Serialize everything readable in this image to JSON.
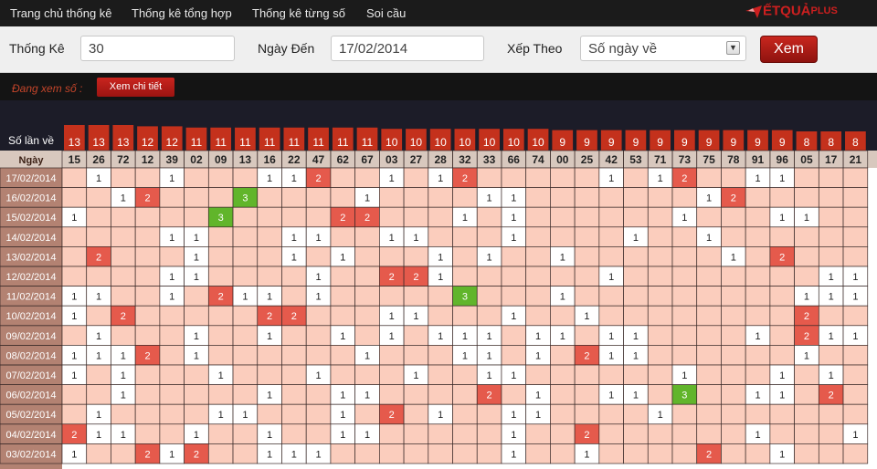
{
  "nav": {
    "items": [
      "Trang chủ thống kê",
      "Thống kê tổng hợp",
      "Thống kê từng số",
      "Soi cầu"
    ],
    "logo": {
      "part1": "ẾTQUẢ",
      "part2": "PLUS"
    }
  },
  "controls": {
    "stats_label": "Thống Kê",
    "stats_value": "30",
    "date_label": "Ngày Đến",
    "date_value": "17/02/2014",
    "sort_label": "Xếp Theo",
    "sort_value": "Số ngày về",
    "view_button": "Xem"
  },
  "viewing": {
    "label": "Đang xem số :",
    "detail_button": "Xem chi tiết"
  },
  "grid": {
    "count_label": "Số lần về",
    "date_header": "Ngày",
    "colors": {
      "header_dark": "#1c1c28",
      "bar_red": "#c4311c",
      "number_row_bg": "#d8c8be",
      "date_col_bg": "#b38272",
      "cell_pink": "#fbcdbd",
      "hit_white": "#ffffff",
      "hit_red": "#e55a4c",
      "hit_green": "#61b52b",
      "grid_line": "#3a2a28"
    },
    "columns": [
      {
        "number": "15",
        "count": 13
      },
      {
        "number": "26",
        "count": 13
      },
      {
        "number": "72",
        "count": 13
      },
      {
        "number": "12",
        "count": 12
      },
      {
        "number": "39",
        "count": 12
      },
      {
        "number": "02",
        "count": 11
      },
      {
        "number": "09",
        "count": 11
      },
      {
        "number": "13",
        "count": 11
      },
      {
        "number": "16",
        "count": 11
      },
      {
        "number": "22",
        "count": 11
      },
      {
        "number": "47",
        "count": 11
      },
      {
        "number": "62",
        "count": 11
      },
      {
        "number": "67",
        "count": 11
      },
      {
        "number": "03",
        "count": 10
      },
      {
        "number": "27",
        "count": 10
      },
      {
        "number": "28",
        "count": 10
      },
      {
        "number": "32",
        "count": 10
      },
      {
        "number": "33",
        "count": 10
      },
      {
        "number": "66",
        "count": 10
      },
      {
        "number": "74",
        "count": 10
      },
      {
        "number": "00",
        "count": 9
      },
      {
        "number": "25",
        "count": 9
      },
      {
        "number": "42",
        "count": 9
      },
      {
        "number": "53",
        "count": 9
      },
      {
        "number": "71",
        "count": 9
      },
      {
        "number": "73",
        "count": 9
      },
      {
        "number": "75",
        "count": 9
      },
      {
        "number": "78",
        "count": 9
      },
      {
        "number": "91",
        "count": 9
      },
      {
        "number": "96",
        "count": 9
      },
      {
        "number": "05",
        "count": 8
      },
      {
        "number": "17",
        "count": 8
      },
      {
        "number": "21",
        "count": 8
      }
    ],
    "rows": [
      {
        "date": "17/02/2014",
        "hits": [
          0,
          1,
          0,
          0,
          1,
          0,
          0,
          0,
          1,
          1,
          2,
          0,
          0,
          1,
          0,
          1,
          2,
          0,
          0,
          0,
          0,
          0,
          1,
          0,
          1,
          2,
          0,
          0,
          1,
          1,
          0,
          0,
          0
        ]
      },
      {
        "date": "16/02/2014",
        "hits": [
          0,
          0,
          1,
          2,
          0,
          0,
          0,
          3,
          0,
          0,
          0,
          0,
          1,
          0,
          0,
          0,
          0,
          1,
          1,
          0,
          0,
          0,
          0,
          0,
          0,
          0,
          1,
          2,
          0,
          0,
          0,
          0,
          0
        ]
      },
      {
        "date": "15/02/2014",
        "hits": [
          1,
          0,
          0,
          0,
          0,
          0,
          3,
          0,
          0,
          0,
          0,
          2,
          2,
          0,
          0,
          0,
          1,
          0,
          1,
          0,
          0,
          0,
          0,
          0,
          0,
          1,
          0,
          0,
          0,
          1,
          1,
          0,
          0
        ]
      },
      {
        "date": "14/02/2014",
        "hits": [
          0,
          0,
          0,
          0,
          1,
          1,
          0,
          0,
          0,
          1,
          1,
          0,
          0,
          1,
          1,
          0,
          0,
          0,
          1,
          0,
          0,
          0,
          0,
          1,
          0,
          0,
          1,
          0,
          0,
          0,
          0,
          0,
          0
        ]
      },
      {
        "date": "13/02/2014",
        "hits": [
          0,
          2,
          0,
          0,
          0,
          1,
          0,
          0,
          0,
          1,
          0,
          1,
          0,
          0,
          0,
          1,
          0,
          1,
          0,
          0,
          1,
          0,
          0,
          0,
          0,
          0,
          0,
          1,
          0,
          2,
          0,
          0,
          0
        ]
      },
      {
        "date": "12/02/2014",
        "hits": [
          0,
          0,
          0,
          0,
          1,
          1,
          0,
          0,
          0,
          0,
          1,
          0,
          0,
          2,
          2,
          1,
          0,
          0,
          0,
          0,
          0,
          0,
          1,
          0,
          0,
          0,
          0,
          0,
          0,
          0,
          0,
          1,
          1
        ]
      },
      {
        "date": "11/02/2014",
        "hits": [
          1,
          1,
          0,
          0,
          1,
          0,
          2,
          1,
          1,
          0,
          1,
          0,
          0,
          0,
          0,
          0,
          3,
          0,
          0,
          0,
          1,
          0,
          0,
          0,
          0,
          0,
          0,
          0,
          0,
          0,
          1,
          1,
          1
        ]
      },
      {
        "date": "10/02/2014",
        "hits": [
          1,
          0,
          2,
          0,
          0,
          0,
          0,
          0,
          2,
          2,
          0,
          0,
          0,
          1,
          1,
          0,
          0,
          0,
          1,
          0,
          0,
          1,
          0,
          0,
          0,
          0,
          0,
          0,
          0,
          0,
          2,
          0,
          0
        ]
      },
      {
        "date": "09/02/2014",
        "hits": [
          0,
          1,
          0,
          0,
          0,
          1,
          0,
          0,
          1,
          0,
          0,
          1,
          0,
          1,
          0,
          1,
          1,
          1,
          0,
          1,
          1,
          0,
          1,
          1,
          0,
          0,
          0,
          0,
          1,
          0,
          2,
          1,
          1
        ]
      },
      {
        "date": "08/02/2014",
        "hits": [
          1,
          1,
          1,
          2,
          0,
          1,
          0,
          0,
          0,
          0,
          0,
          0,
          1,
          0,
          0,
          0,
          1,
          1,
          0,
          1,
          0,
          2,
          1,
          1,
          0,
          0,
          0,
          0,
          0,
          0,
          1,
          0,
          0
        ]
      },
      {
        "date": "07/02/2014",
        "hits": [
          1,
          0,
          1,
          0,
          0,
          0,
          1,
          0,
          0,
          0,
          1,
          0,
          0,
          0,
          1,
          0,
          0,
          1,
          1,
          0,
          0,
          0,
          0,
          0,
          0,
          1,
          0,
          0,
          0,
          1,
          0,
          1,
          0
        ]
      },
      {
        "date": "06/02/2014",
        "hits": [
          0,
          0,
          1,
          0,
          0,
          0,
          0,
          0,
          1,
          0,
          0,
          1,
          1,
          0,
          0,
          0,
          0,
          2,
          0,
          1,
          0,
          0,
          1,
          1,
          0,
          3,
          0,
          0,
          1,
          1,
          0,
          2,
          0
        ]
      },
      {
        "date": "05/02/2014",
        "hits": [
          0,
          1,
          0,
          0,
          0,
          0,
          1,
          1,
          0,
          0,
          0,
          1,
          0,
          2,
          0,
          1,
          0,
          0,
          1,
          1,
          0,
          0,
          0,
          0,
          1,
          0,
          0,
          0,
          0,
          0,
          0,
          0,
          0
        ]
      },
      {
        "date": "04/02/2014",
        "hits": [
          2,
          1,
          1,
          0,
          0,
          1,
          0,
          0,
          1,
          0,
          0,
          1,
          1,
          0,
          0,
          0,
          0,
          0,
          1,
          0,
          0,
          2,
          0,
          0,
          0,
          0,
          0,
          0,
          1,
          0,
          0,
          0,
          1
        ]
      },
      {
        "date": "03/02/2014",
        "hits": [
          1,
          0,
          0,
          2,
          1,
          2,
          0,
          0,
          1,
          1,
          1,
          0,
          0,
          0,
          0,
          0,
          0,
          0,
          1,
          0,
          0,
          1,
          0,
          0,
          0,
          0,
          2,
          0,
          0,
          1,
          0,
          0,
          0
        ]
      }
    ]
  }
}
